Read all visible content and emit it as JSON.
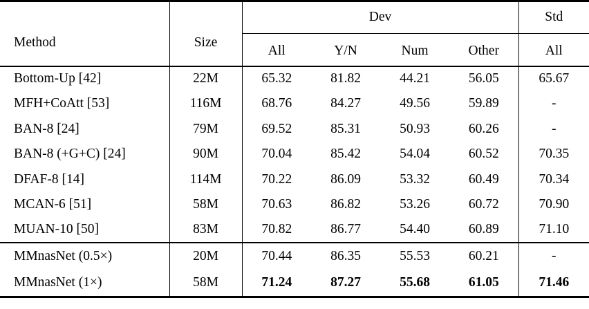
{
  "table": {
    "header": {
      "method": "Method",
      "size": "Size",
      "dev_group": "Dev",
      "std_group": "Std",
      "dev_sub": [
        "All",
        "Y/N",
        "Num",
        "Other"
      ],
      "std_sub": "All"
    },
    "baseline_rows": [
      {
        "method": "Bottom-Up [42]",
        "size": "22M",
        "dev_all": "65.32",
        "dev_yn": "81.82",
        "dev_num": "44.21",
        "dev_other": "56.05",
        "std_all": "65.67"
      },
      {
        "method": "MFH+CoAtt [53]",
        "size": "116M",
        "dev_all": "68.76",
        "dev_yn": "84.27",
        "dev_num": "49.56",
        "dev_other": "59.89",
        "std_all": "-"
      },
      {
        "method": "BAN-8 [24]",
        "size": "79M",
        "dev_all": "69.52",
        "dev_yn": "85.31",
        "dev_num": "50.93",
        "dev_other": "60.26",
        "std_all": "-"
      },
      {
        "method": "BAN-8 (+G+C) [24]",
        "size": "90M",
        "dev_all": "70.04",
        "dev_yn": "85.42",
        "dev_num": "54.04",
        "dev_other": "60.52",
        "std_all": "70.35"
      },
      {
        "method": "DFAF-8 [14]",
        "size": "114M",
        "dev_all": "70.22",
        "dev_yn": "86.09",
        "dev_num": "53.32",
        "dev_other": "60.49",
        "std_all": "70.34"
      },
      {
        "method": "MCAN-6 [51]",
        "size": "58M",
        "dev_all": "70.63",
        "dev_yn": "86.82",
        "dev_num": "53.26",
        "dev_other": "60.72",
        "std_all": "70.90"
      },
      {
        "method": "MUAN-10 [50]",
        "size": "83M",
        "dev_all": "70.82",
        "dev_yn": "86.77",
        "dev_num": "54.40",
        "dev_other": "60.89",
        "std_all": "71.10"
      }
    ],
    "mmnas_rows": [
      {
        "method": "MMnasNet (0.5×)",
        "size": "20M",
        "dev_all": "70.44",
        "dev_yn": "86.35",
        "dev_num": "55.53",
        "dev_other": "60.21",
        "std_all": "-"
      },
      {
        "method": "MMnasNet (1×)",
        "size": "58M",
        "dev_all": "71.24",
        "dev_yn": "87.27",
        "dev_num": "55.68",
        "dev_other": "61.05",
        "std_all": "71.46"
      }
    ]
  }
}
